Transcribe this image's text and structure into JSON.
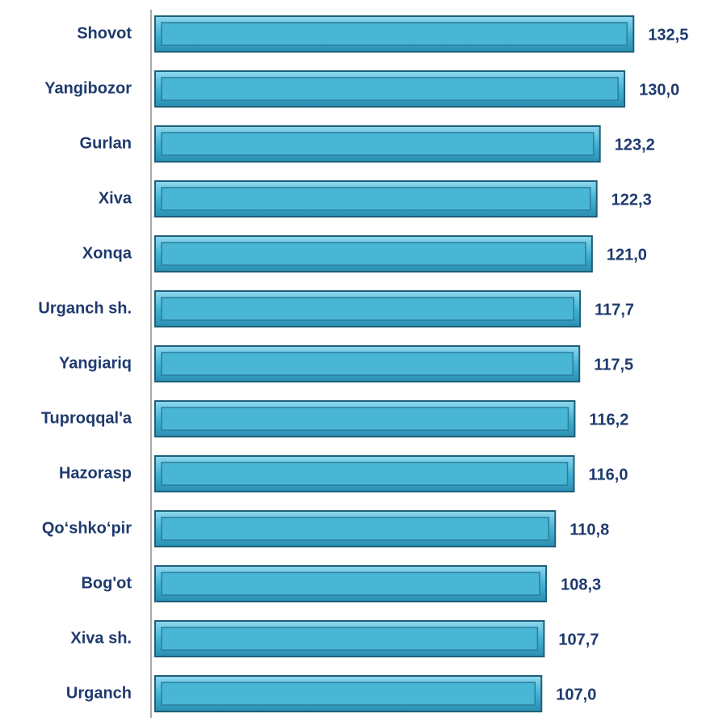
{
  "chart_data": {
    "type": "barh",
    "categories": [
      "Shovot",
      "Yangibozor",
      "Gurlan",
      "Xiva",
      "Xonqa",
      "Urganch sh.",
      "Yangiariq",
      "Tuproqqal'a",
      "Hazorasp",
      "Qo‘shko‘pir",
      "Bog'ot",
      "Xiva sh.",
      "Urganch"
    ],
    "values": [
      132.5,
      130.0,
      123.2,
      122.3,
      121.0,
      117.7,
      117.5,
      116.2,
      116.0,
      110.8,
      108.3,
      107.7,
      107.0
    ],
    "value_labels": [
      "132,5",
      "130,0",
      "123,2",
      "122,3",
      "121,0",
      "117,7",
      "117,5",
      "116,2",
      "116,0",
      "110,8",
      "108,3",
      "107,7",
      "107,0"
    ],
    "color": "#4ab6d6"
  }
}
